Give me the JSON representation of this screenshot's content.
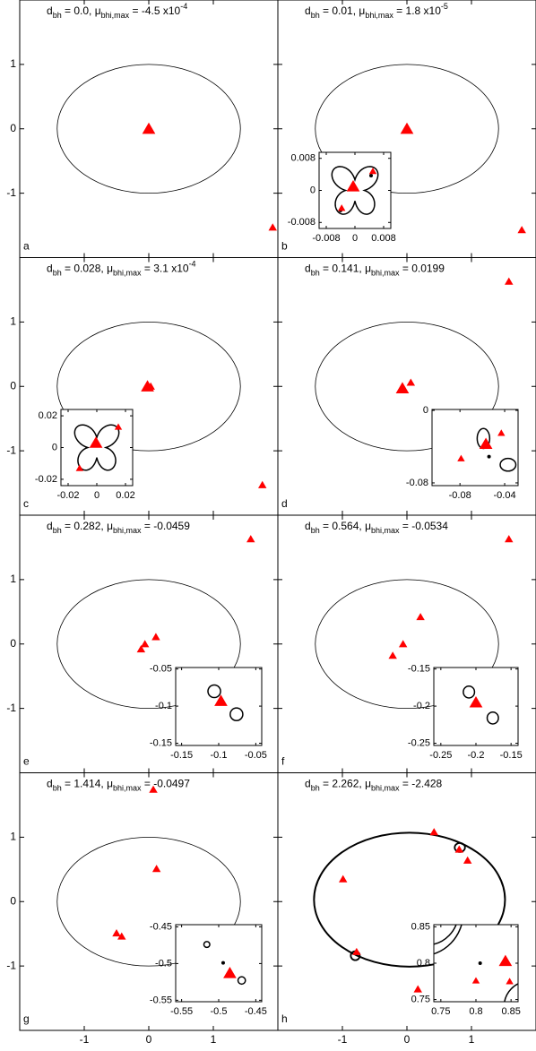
{
  "chart_data": {
    "type": "scatter",
    "marker_color": "#ff0000",
    "xlim": [
      -2,
      2
    ],
    "ylim": [
      -2,
      2
    ],
    "xticks": [
      -1,
      0,
      1
    ],
    "yticks": [
      -1,
      0,
      1
    ],
    "panels": [
      {
        "label": "a",
        "title": [
          {
            "text": "d"
          },
          {
            "text": "bh",
            "sub": true
          },
          {
            "text": " = 0.0, μ"
          },
          {
            "text": "bhi,max",
            "sub": true
          },
          {
            "text": " = -4.5 x10"
          },
          {
            "text": "-4",
            "sup": true
          }
        ],
        "ring": {
          "cx": 0,
          "cy": 0,
          "rx": 1.42,
          "ry": 1
        },
        "images": {
          "x": [
            0,
            1.92
          ],
          "y": [
            0,
            -1.53
          ],
          "size": [
            2,
            1
          ]
        }
      },
      {
        "label": "b",
        "title": [
          {
            "text": "d"
          },
          {
            "text": "bh",
            "sub": true
          },
          {
            "text": " = 0.01, μ"
          },
          {
            "text": "bhi,max",
            "sub": true
          },
          {
            "text": " = 1.8 x10"
          },
          {
            "text": "-5",
            "sup": true
          }
        ],
        "ring": {
          "cx": 0,
          "cy": 0,
          "rx": 1.42,
          "ry": 1
        },
        "images": {
          "x": [
            0,
            1.78
          ],
          "y": [
            0,
            -1.57
          ],
          "size": [
            2,
            1
          ]
        },
        "inset": {
          "xlim": [
            -0.01,
            0.01
          ],
          "ylim": [
            -0.0095,
            0.0095
          ],
          "xticks": [
            -0.008,
            0,
            0.008
          ],
          "yticks": [
            -0.008,
            0,
            0.008
          ],
          "images": {
            "x": [
              -0.0005,
              0.005,
              -0.0037
            ],
            "y": [
              0.001,
              0.0048,
              -0.0044
            ],
            "size": [
              2,
              1,
              1
            ]
          },
          "dots": {
            "x": [
              0.0045,
              -0.004
            ],
            "y": [
              0.0037,
              -0.005
            ]
          },
          "rose": {
            "cx": 0,
            "cy": 0,
            "r": 0.0075
          }
        }
      },
      {
        "label": "c",
        "title": [
          {
            "text": "d"
          },
          {
            "text": "bh",
            "sub": true
          },
          {
            "text": " = 0.028, μ"
          },
          {
            "text": "bhi,max",
            "sub": true
          },
          {
            "text": " = 3.1 x10"
          },
          {
            "text": "-4",
            "sup": true
          }
        ],
        "ring": {
          "cx": 0,
          "cy": 0,
          "rx": 1.42,
          "ry": 1
        },
        "images": {
          "x": [
            -0.02,
            0.03,
            1.76
          ],
          "y": [
            0,
            0,
            -1.53
          ],
          "size": [
            2,
            1,
            1
          ]
        },
        "inset": {
          "xlim": [
            -0.025,
            0.025
          ],
          "ylim": [
            -0.024,
            0.024
          ],
          "xticks": [
            -0.02,
            0,
            0.02
          ],
          "yticks": [
            -0.02,
            0,
            0.02
          ],
          "images": {
            "x": [
              -0.0006,
              0.015,
              -0.012
            ],
            "y": [
              0.003,
              0.013,
              -0.013
            ],
            "size": [
              2,
              1,
              1
            ]
          },
          "rose": {
            "cx": 0,
            "cy": 0,
            "r": 0.018
          }
        }
      },
      {
        "label": "d",
        "title": [
          {
            "text": "d"
          },
          {
            "text": "bh",
            "sub": true
          },
          {
            "text": " = 0.141, μ"
          },
          {
            "text": "bhi,max",
            "sub": true
          },
          {
            "text": " = 0.0199"
          }
        ],
        "ring": {
          "cx": 0,
          "cy": 0,
          "rx": 1.42,
          "ry": 1
        },
        "images": {
          "x": [
            1.58,
            0.06,
            -0.07
          ],
          "y": [
            1.63,
            0.06,
            -0.03
          ],
          "size": [
            1,
            1,
            2
          ]
        },
        "inset": {
          "xlim": [
            -0.105,
            -0.028
          ],
          "ylim": [
            -0.083,
            0.001
          ],
          "xticks": [
            -0.08,
            -0.04
          ],
          "yticks": [
            -0.08,
            0
          ],
          "images": {
            "x": [
              -0.0568,
              -0.043,
              -0.079
            ],
            "y": [
              -0.037,
              -0.025,
              -0.053
            ],
            "size": [
              2,
              1,
              1
            ]
          },
          "dots": {
            "x": [
              -0.054
            ],
            "y": [
              -0.051
            ]
          },
          "loops": [
            [
              -0.059,
              -0.031,
              0.0056,
              0.011
            ],
            [
              -0.037,
              -0.06,
              0.007,
              0.007
            ]
          ]
        }
      },
      {
        "label": "e",
        "title": [
          {
            "text": "d"
          },
          {
            "text": "bh",
            "sub": true
          },
          {
            "text": " = 0.282, μ"
          },
          {
            "text": "bhi,max",
            "sub": true
          },
          {
            "text": " = -0.0459"
          }
        ],
        "ring": {
          "cx": 0,
          "cy": 0,
          "rx": 1.42,
          "ry": 1
        },
        "images": {
          "x": [
            1.58,
            0.11,
            -0.06,
            -0.12
          ],
          "y": [
            1.63,
            0.11,
            0,
            -0.08
          ],
          "size": [
            1,
            1,
            1,
            1
          ]
        },
        "inset": {
          "xlim": [
            -0.158,
            -0.042
          ],
          "ylim": [
            -0.153,
            -0.048
          ],
          "xticks": [
            -0.15,
            -0.1,
            -0.05
          ],
          "yticks": [
            -0.15,
            -0.1,
            -0.05
          ],
          "images": {
            "x": [
              -0.097
            ],
            "y": [
              -0.093
            ],
            "size": [
              2
            ]
          },
          "loops": [
            [
              -0.106,
              -0.08,
              0.0085,
              0.0085
            ],
            [
              -0.076,
              -0.111,
              0.0085,
              0.0085
            ]
          ]
        }
      },
      {
        "label": "f",
        "title": [
          {
            "text": "d"
          },
          {
            "text": "bh",
            "sub": true
          },
          {
            "text": " = 0.564, μ"
          },
          {
            "text": "bhi,max",
            "sub": true
          },
          {
            "text": " = -0.0534"
          }
        ],
        "ring": {
          "cx": 0,
          "cy": 0,
          "rx": 1.42,
          "ry": 1
        },
        "images": {
          "x": [
            1.58,
            0.21,
            -0.06,
            -0.22
          ],
          "y": [
            1.63,
            0.42,
            0,
            -0.18
          ],
          "size": [
            1,
            1,
            1,
            1
          ]
        },
        "inset": {
          "xlim": [
            -0.26,
            -0.14
          ],
          "ylim": [
            -0.253,
            -0.148
          ],
          "xticks": [
            -0.25,
            -0.2,
            -0.15
          ],
          "yticks": [
            -0.25,
            -0.2,
            -0.15
          ],
          "images": {
            "x": [
              -0.2
            ],
            "y": [
              -0.195
            ],
            "size": [
              2
            ]
          },
          "loops": [
            [
              -0.21,
              -0.181,
              0.008,
              0.008
            ],
            [
              -0.176,
              -0.216,
              0.008,
              0.008
            ]
          ]
        }
      },
      {
        "label": "g",
        "title": [
          {
            "text": "d"
          },
          {
            "text": "bh",
            "sub": true
          },
          {
            "text": " = 1.414, μ"
          },
          {
            "text": "bhi,max",
            "sub": true
          },
          {
            "text": " = -0.0497"
          }
        ],
        "ring": {
          "cx": 0,
          "cy": 0,
          "rx": 1.42,
          "ry": 1
        },
        "images": {
          "x": [
            0.07,
            0.12,
            -0.5,
            -0.42
          ],
          "y": [
            1.74,
            0.51,
            -0.49,
            -0.54
          ],
          "size": [
            1,
            1,
            1,
            1
          ]
        },
        "inset": {
          "xlim": [
            -0.558,
            -0.442
          ],
          "ylim": [
            -0.552,
            -0.447
          ],
          "xticks": [
            -0.55,
            -0.5,
            -0.45
          ],
          "yticks": [
            -0.55,
            -0.5,
            -0.45
          ],
          "images": {
            "x": [
              -0.485
            ],
            "y": [
              -0.513
            ],
            "size": [
              2
            ]
          },
          "dots": {
            "x": [
              -0.494
            ],
            "y": [
              -0.499
            ]
          },
          "loops": [
            [
              -0.516,
              -0.474,
              0.004,
              0.004
            ],
            [
              -0.469,
              -0.523,
              0.005,
              0.005
            ]
          ]
        }
      },
      {
        "label": "h",
        "title": [
          {
            "text": "d"
          },
          {
            "text": "bh",
            "sub": true
          },
          {
            "text": " = 2.262, μ"
          },
          {
            "text": "bhi,max",
            "sub": true
          },
          {
            "text": " = -2.428"
          }
        ],
        "ring": {
          "cx": 0.04,
          "cy": 0.03,
          "rx": 1.48,
          "ry": 1.04,
          "bold": true
        },
        "images": {
          "x": [
            0.42,
            0.81,
            0.94,
            -0.99,
            -0.78,
            0.17
          ],
          "y": [
            1.08,
            0.81,
            0.64,
            0.35,
            -0.78,
            -1.36
          ],
          "size": [
            1,
            1,
            1,
            1,
            1,
            1
          ]
        },
        "loops": [
          [
            0.82,
            0.84,
            0.08,
            0.07
          ],
          [
            -0.8,
            -0.84,
            0.07,
            0.07
          ]
        ],
        "inset": {
          "xlim": [
            0.74,
            0.86
          ],
          "ylim": [
            0.747,
            0.853
          ],
          "xticks": [
            0.75,
            0.8,
            0.85
          ],
          "yticks": [
            0.75,
            0.8,
            0.85
          ],
          "images": {
            "x": [
              0.842,
              0.8,
              0.848
            ],
            "y": [
              0.803,
              0.776,
              0.775
            ],
            "size": [
              2,
              1,
              1
            ]
          },
          "dots": {
            "x": [
              0.806
            ],
            "y": [
              0.8
            ]
          },
          "loops": [
            [
              0.722,
              0.87,
              0.06,
              0.06
            ],
            [
              0.73,
              0.87,
              0.045,
              0.045
            ],
            [
              0.875,
              0.74,
              0.035,
              0.035
            ]
          ]
        }
      }
    ]
  }
}
